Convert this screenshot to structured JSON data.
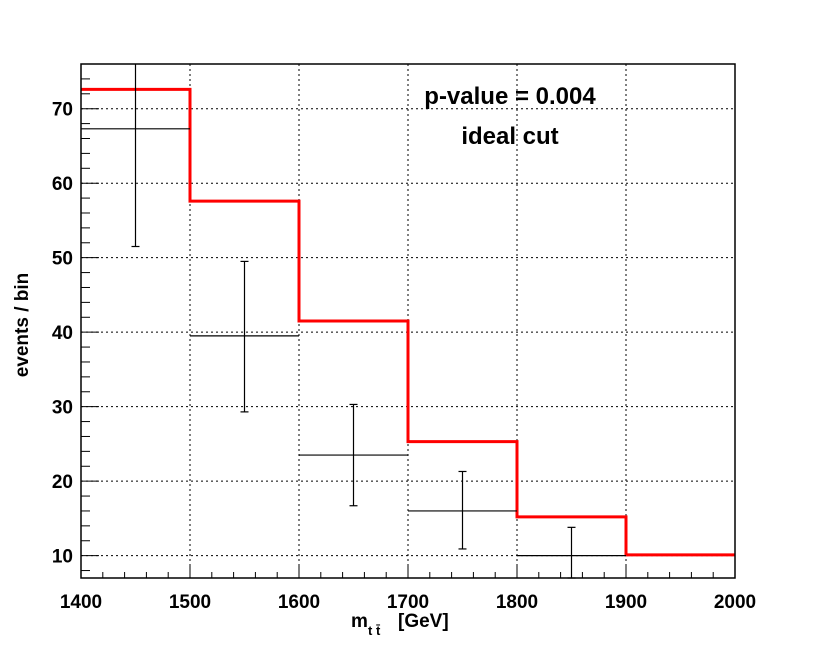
{
  "chart_data": {
    "type": "bar",
    "xlabel_main": "m",
    "xlabel_sub": "t t̄",
    "xlabel_unit": "[GeV]",
    "ylabel": "events / bin",
    "xlim": [
      1400,
      2000
    ],
    "ylim": [
      7,
      76
    ],
    "x_ticks": [
      1400,
      1500,
      1600,
      1700,
      1800,
      1900,
      2000
    ],
    "y_ticks": [
      10,
      20,
      30,
      40,
      50,
      60,
      70
    ],
    "grid": true,
    "annotations": [
      "p-value = 0.004",
      "ideal cut"
    ],
    "series": [
      {
        "kind": "histogram",
        "color": "#ff0000",
        "bins": [
          {
            "low": 1400,
            "high": 1500,
            "value": 72.6
          },
          {
            "low": 1500,
            "high": 1600,
            "value": 57.6
          },
          {
            "low": 1600,
            "high": 1700,
            "value": 41.5
          },
          {
            "low": 1700,
            "high": 1800,
            "value": 25.3
          },
          {
            "low": 1800,
            "high": 1900,
            "value": 15.2
          },
          {
            "low": 1900,
            "high": 2000,
            "value": 10.1
          }
        ]
      },
      {
        "kind": "data-points",
        "color": "#000000",
        "points": [
          {
            "x": 1450,
            "xlow": 1400,
            "xhigh": 1500,
            "y": 67.3,
            "ylow": 51.5,
            "yhigh": 76
          },
          {
            "x": 1550,
            "xlow": 1500,
            "xhigh": 1600,
            "y": 39.5,
            "ylow": 29.3,
            "yhigh": 49.5
          },
          {
            "x": 1650,
            "xlow": 1600,
            "xhigh": 1700,
            "y": 23.5,
            "ylow": 16.7,
            "yhigh": 30.3
          },
          {
            "x": 1750,
            "xlow": 1700,
            "xhigh": 1800,
            "y": 16.0,
            "ylow": 10.9,
            "yhigh": 21.3
          },
          {
            "x": 1850,
            "xlow": 1800,
            "xhigh": 1900,
            "y": 10.0,
            "ylow": 7,
            "yhigh": 13.8
          }
        ]
      }
    ]
  }
}
